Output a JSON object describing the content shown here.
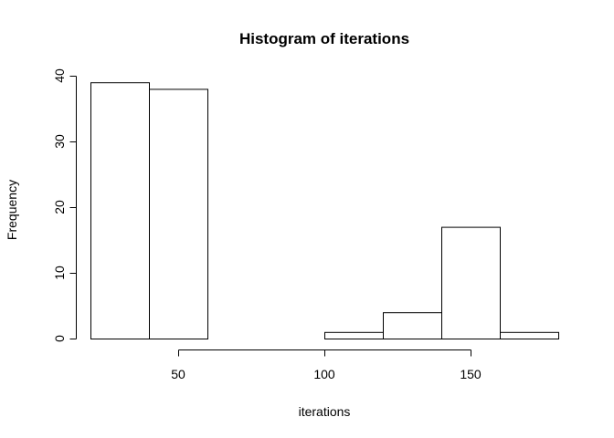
{
  "chart_data": {
    "type": "bar",
    "title": "Histogram of iterations",
    "xlabel": "iterations",
    "ylabel": "Frequency",
    "bins": [
      {
        "from": 20,
        "to": 40,
        "count": 39
      },
      {
        "from": 40,
        "to": 60,
        "count": 38
      },
      {
        "from": 60,
        "to": 80,
        "count": 0
      },
      {
        "from": 80,
        "to": 100,
        "count": 0
      },
      {
        "from": 100,
        "to": 120,
        "count": 1
      },
      {
        "from": 120,
        "to": 140,
        "count": 4
      },
      {
        "from": 140,
        "to": 160,
        "count": 17
      },
      {
        "from": 160,
        "to": 180,
        "count": 1
      }
    ],
    "xlim": [
      20,
      180
    ],
    "ylim": [
      0,
      40
    ],
    "x_ticks": [
      50,
      100,
      150
    ],
    "y_ticks": [
      0,
      10,
      20,
      30,
      40
    ],
    "grid": false,
    "legend": "none",
    "bar_fill": "#ffffff",
    "bar_stroke": "#000000"
  }
}
